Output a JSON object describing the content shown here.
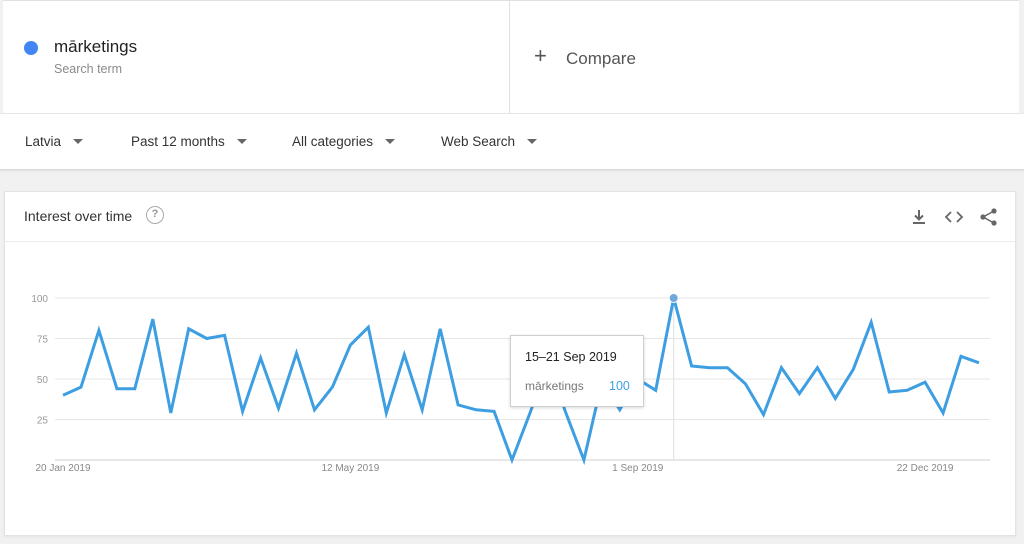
{
  "search_term": {
    "name": "mārketings",
    "subtitle": "Search term",
    "color": "#4285f4"
  },
  "compare": {
    "label": "Compare"
  },
  "filters": {
    "region": "Latvia",
    "period": "Past 12 months",
    "category": "All categories",
    "search_type": "Web Search"
  },
  "card": {
    "title": "Interest over time",
    "icons": [
      "help-icon",
      "download-icon",
      "embed-icon",
      "share-icon"
    ]
  },
  "tooltip": {
    "date": "15–21 Sep 2019",
    "term": "mārketings",
    "value": "100"
  },
  "chart_data": {
    "type": "line",
    "title": "",
    "xlabel": "",
    "ylabel": "",
    "ylim": [
      0,
      100
    ],
    "yticks": [
      "25",
      "50",
      "75",
      "100"
    ],
    "xtick_labels": [
      {
        "label": "20 Jan 2019",
        "index": 0
      },
      {
        "label": "12 May 2019",
        "index": 16
      },
      {
        "label": "1 Sep 2019",
        "index": 32
      },
      {
        "label": "22 Dec 2019",
        "index": 48
      }
    ],
    "grid": true,
    "color": "#3d9ee2",
    "highlight_index": 34,
    "series": [
      {
        "name": "mārketings",
        "values": [
          40,
          45,
          80,
          44,
          44,
          87,
          29,
          81,
          75,
          77,
          30,
          63,
          32,
          66,
          31,
          45,
          71,
          82,
          29,
          65,
          31,
          81,
          34,
          31,
          30,
          0,
          29,
          60,
          29,
          0,
          48,
          31,
          50,
          43,
          100,
          58,
          57,
          57,
          47,
          28,
          57,
          41,
          57,
          38,
          56,
          85,
          42,
          43,
          48,
          29,
          64,
          60
        ]
      }
    ]
  }
}
